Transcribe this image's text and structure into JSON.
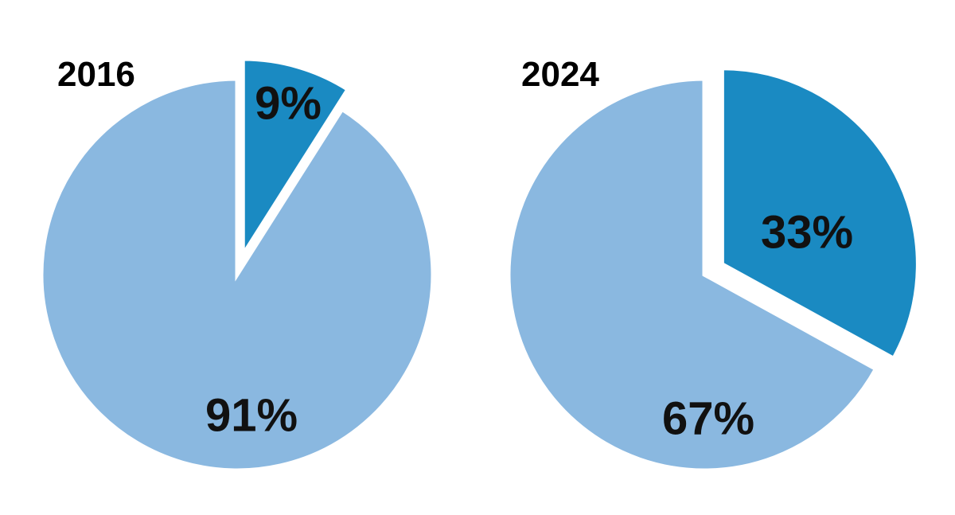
{
  "colors": {
    "background": "#ffffff",
    "slice_light": "#8ab8e0",
    "slice_dark": "#1a8ac2",
    "separator": "#ffffff",
    "text": "#000000"
  },
  "chart_data": [
    {
      "type": "pie",
      "title": "2016",
      "slices": [
        {
          "value": 9,
          "label": "9%",
          "color": "#1a8ac2",
          "exploded": true
        },
        {
          "value": 91,
          "label": "91%",
          "color": "#8ab8e0",
          "exploded": false
        }
      ]
    },
    {
      "type": "pie",
      "title": "2024",
      "slices": [
        {
          "value": 33,
          "label": "33%",
          "color": "#1a8ac2",
          "exploded": true
        },
        {
          "value": 67,
          "label": "67%",
          "color": "#8ab8e0",
          "exploded": false
        }
      ]
    }
  ]
}
